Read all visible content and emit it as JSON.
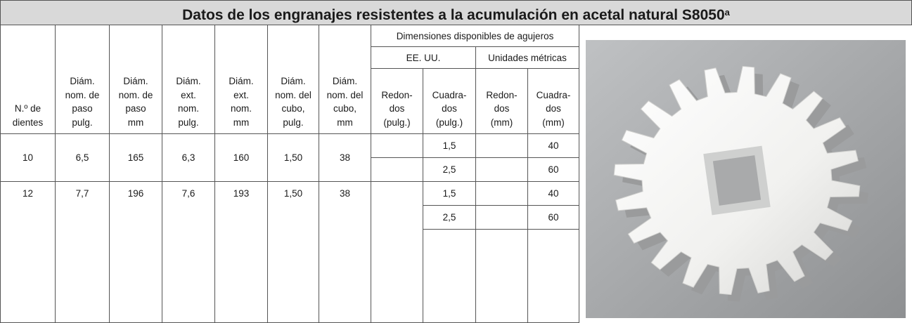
{
  "header": {
    "title": "Datos de los engranajes resistentes a la acumulación en acetal natural S8050",
    "title_sup": "a"
  },
  "table": {
    "group_header": "Dimensiones disponibles de agujeros",
    "subgroups": [
      "EE. UU.",
      "Unidades métricas"
    ],
    "columns": [
      [
        "N.º de",
        "dientes"
      ],
      [
        "Diám.",
        "nom. de",
        "paso",
        "pulg."
      ],
      [
        "Diám.",
        "nom. de",
        "paso",
        "mm"
      ],
      [
        "Diám.",
        "ext.",
        "nom.",
        "pulg."
      ],
      [
        "Diám.",
        "ext.",
        "nom.",
        "mm"
      ],
      [
        "Diám.",
        "nom. del",
        "cubo,",
        "pulg."
      ],
      [
        "Diám.",
        "nom. del",
        "cubo,",
        "mm"
      ],
      [
        "Redon-",
        "dos",
        "(pulg.)"
      ],
      [
        "Cuadra-",
        "dos",
        "(pulg.)"
      ],
      [
        "Redon-",
        "dos",
        "(mm)"
      ],
      [
        "Cuadra-",
        "dos",
        "(mm)"
      ]
    ],
    "rows": [
      {
        "cells": [
          "10",
          "6,5",
          "165",
          "6,3",
          "160",
          "1,50",
          "38"
        ],
        "holes": [
          {
            "square_in": "1,5",
            "square_mm": "40"
          },
          {
            "square_in": "2,5",
            "square_mm": "60"
          }
        ]
      },
      {
        "cells": [
          "12",
          "7,7",
          "196",
          "7,6",
          "193",
          "1,50",
          "38"
        ],
        "holes": [
          {
            "square_in": "1,5",
            "square_mm": "40"
          },
          {
            "square_in": "2,5",
            "square_mm": "60"
          }
        ]
      }
    ]
  }
}
